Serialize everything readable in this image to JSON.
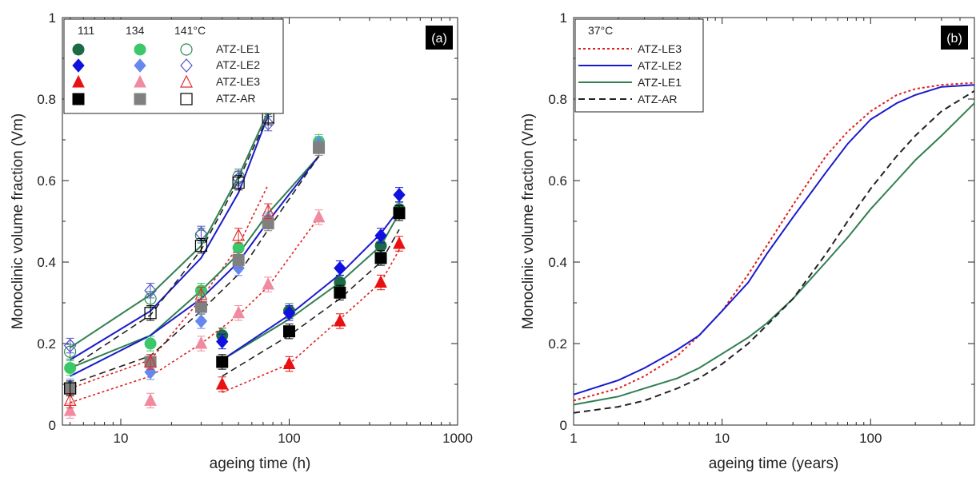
{
  "figure": {
    "panels": [
      {
        "panel_label": "(a)",
        "xlabel": "ageing time (h)",
        "ylabel": "Monoclinic volume fraction (Vm)",
        "legend_header": [
          "111",
          "134",
          "141°C"
        ],
        "legend_rows": [
          "ATZ-LE1",
          "ATZ-LE2",
          "ATZ-LE3",
          "ATZ-AR"
        ]
      },
      {
        "panel_label": "(b)",
        "xlabel": "ageing time (years)",
        "ylabel": "Monoclinic volume fraction (Vm)",
        "legend_title": "37°C",
        "legend_rows": [
          "ATZ-LE3",
          "ATZ-LE2",
          "ATZ-LE1",
          "ATZ-AR"
        ]
      }
    ]
  },
  "colors": {
    "LE1_dark": "#1d6b45",
    "LE1_light": "#3cc768",
    "LE1_open": "#2f8a5a",
    "LE2_dark": "#1010e0",
    "LE2_light": "#6688ee",
    "LE2_open": "#5555cc",
    "LE3_dark": "#e81010",
    "LE3_light": "#f08aa0",
    "LE3_open": "#e03030",
    "AR_dark": "#000000",
    "AR_light": "#808080",
    "AR_open": "#000000",
    "fit_LE1": "#2f7f50",
    "fit_LE2": "#1a1acc",
    "fit_LE3": "#e02020",
    "fit_AR": "#222222"
  },
  "chart_data": [
    {
      "type": "scatter",
      "xscale": "log",
      "xlim": [
        4.5,
        1000
      ],
      "ylim": [
        0,
        1
      ],
      "x_ticks": [
        "10",
        "100",
        "1000"
      ],
      "y_ticks": [
        "0",
        "0.2",
        "0.4",
        "0.6",
        "0.8",
        "1"
      ],
      "grid": false,
      "legend_placement": "top-left",
      "series": [
        {
          "material": "ATZ-LE1",
          "temperature": "111",
          "style": "dark",
          "marker": "circle",
          "x": [
            40,
            100,
            200,
            350,
            450
          ],
          "y": [
            0.22,
            0.28,
            0.35,
            0.44,
            0.53
          ]
        },
        {
          "material": "ATZ-LE2",
          "temperature": "111",
          "style": "dark",
          "marker": "diamond",
          "x": [
            40,
            100,
            200,
            350,
            450
          ],
          "y": [
            0.205,
            0.275,
            0.385,
            0.465,
            0.565
          ]
        },
        {
          "material": "ATZ-LE3",
          "temperature": "111",
          "style": "dark",
          "marker": "triangle",
          "x": [
            40,
            100,
            200,
            350,
            450
          ],
          "y": [
            0.1,
            0.15,
            0.255,
            0.35,
            0.445
          ]
        },
        {
          "material": "ATZ-AR",
          "temperature": "111",
          "style": "dark",
          "marker": "square",
          "x": [
            40,
            100,
            200,
            350,
            450
          ],
          "y": [
            0.155,
            0.23,
            0.325,
            0.41,
            0.52
          ]
        },
        {
          "material": "ATZ-LE1",
          "temperature": "134",
          "style": "light",
          "marker": "circle",
          "x": [
            5,
            15,
            30,
            50,
            75,
            150
          ],
          "y": [
            0.14,
            0.2,
            0.33,
            0.435,
            0.5,
            0.695
          ]
        },
        {
          "material": "ATZ-LE2",
          "temperature": "134",
          "style": "light",
          "marker": "diamond",
          "x": [
            5,
            15,
            30,
            50,
            75,
            150
          ],
          "y": [
            0.095,
            0.13,
            0.255,
            0.385,
            0.505,
            0.69
          ]
        },
        {
          "material": "ATZ-LE3",
          "temperature": "134",
          "style": "light",
          "marker": "triangle",
          "x": [
            5,
            15,
            30,
            50,
            75,
            150
          ],
          "y": [
            0.035,
            0.06,
            0.2,
            0.275,
            0.345,
            0.51
          ]
        },
        {
          "material": "ATZ-AR",
          "temperature": "134",
          "style": "light",
          "marker": "square",
          "x": [
            5,
            15,
            30,
            50,
            75,
            150
          ],
          "y": [
            0.09,
            0.155,
            0.29,
            0.405,
            0.495,
            0.68
          ]
        },
        {
          "material": "ATZ-LE1",
          "temperature": "141°C",
          "style": "open",
          "marker": "circle",
          "x": [
            5,
            15,
            30,
            50,
            75
          ],
          "y": [
            0.18,
            0.31,
            0.465,
            0.61,
            0.775
          ]
        },
        {
          "material": "ATZ-LE2",
          "temperature": "141°C",
          "style": "open",
          "marker": "diamond",
          "x": [
            5,
            15,
            30,
            50,
            75
          ],
          "y": [
            0.195,
            0.33,
            0.47,
            0.605,
            0.74
          ]
        },
        {
          "material": "ATZ-LE3",
          "temperature": "141°C",
          "style": "open",
          "marker": "triangle",
          "x": [
            5,
            15,
            30,
            50,
            75
          ],
          "y": [
            0.06,
            0.155,
            0.32,
            0.465,
            0.525
          ]
        },
        {
          "material": "ATZ-AR",
          "temperature": "141°C",
          "style": "open",
          "marker": "square",
          "x": [
            5,
            15,
            30,
            50,
            75
          ],
          "y": [
            0.09,
            0.275,
            0.44,
            0.595,
            0.755
          ]
        }
      ],
      "fit_lines": [
        {
          "material": "ATZ-LE1",
          "temperature": "141°C",
          "dash": "solid",
          "x": [
            5,
            15,
            30,
            50,
            75
          ],
          "y": [
            0.19,
            0.32,
            0.44,
            0.61,
            0.77
          ]
        },
        {
          "material": "ATZ-LE2",
          "temperature": "141°C",
          "dash": "solid",
          "x": [
            5,
            15,
            30,
            50,
            75
          ],
          "y": [
            0.16,
            0.28,
            0.41,
            0.57,
            0.76
          ]
        },
        {
          "material": "ATZ-AR",
          "temperature": "141°C",
          "dash": "dashed",
          "x": [
            5,
            15,
            30,
            50,
            75
          ],
          "y": [
            0.14,
            0.27,
            0.43,
            0.6,
            0.76
          ]
        },
        {
          "material": "ATZ-LE3",
          "temperature": "141°C",
          "dash": "dotted",
          "x": [
            5,
            15,
            30,
            50,
            75
          ],
          "y": [
            0.09,
            0.16,
            0.31,
            0.44,
            0.59
          ]
        },
        {
          "material": "ATZ-LE1",
          "temperature": "134",
          "dash": "solid",
          "x": [
            5,
            15,
            30,
            50,
            75,
            150
          ],
          "y": [
            0.14,
            0.22,
            0.33,
            0.42,
            0.52,
            0.66
          ]
        },
        {
          "material": "ATZ-LE2",
          "temperature": "134",
          "dash": "solid",
          "x": [
            5,
            15,
            30,
            50,
            75,
            150
          ],
          "y": [
            0.12,
            0.22,
            0.31,
            0.4,
            0.5,
            0.66
          ]
        },
        {
          "material": "ATZ-AR",
          "temperature": "134",
          "dash": "dashed",
          "x": [
            5,
            15,
            30,
            50,
            75,
            150
          ],
          "y": [
            0.1,
            0.17,
            0.28,
            0.37,
            0.48,
            0.66
          ]
        },
        {
          "material": "ATZ-LE3",
          "temperature": "134",
          "dash": "dotted",
          "x": [
            5,
            15,
            30,
            50,
            75,
            150
          ],
          "y": [
            0.055,
            0.12,
            0.2,
            0.27,
            0.34,
            0.51
          ]
        },
        {
          "material": "ATZ-LE1",
          "temperature": "111",
          "dash": "solid",
          "x": [
            40,
            100,
            200,
            350,
            450
          ],
          "y": [
            0.16,
            0.26,
            0.35,
            0.44,
            0.52
          ]
        },
        {
          "material": "ATZ-LE2",
          "temperature": "111",
          "dash": "solid",
          "x": [
            40,
            100,
            200,
            350,
            450
          ],
          "y": [
            0.16,
            0.27,
            0.37,
            0.47,
            0.53
          ]
        },
        {
          "material": "ATZ-AR",
          "temperature": "111",
          "dash": "dashed",
          "x": [
            40,
            100,
            200,
            350,
            450
          ],
          "y": [
            0.12,
            0.22,
            0.31,
            0.4,
            0.48
          ]
        },
        {
          "material": "ATZ-LE3",
          "temperature": "111",
          "dash": "dotted",
          "x": [
            40,
            100,
            200,
            350,
            450
          ],
          "y": [
            0.08,
            0.15,
            0.26,
            0.35,
            0.43
          ]
        }
      ]
    },
    {
      "type": "line",
      "xscale": "log",
      "xlim": [
        1,
        500
      ],
      "ylim": [
        0,
        1
      ],
      "x_ticks": [
        "1",
        "10",
        "100"
      ],
      "y_ticks": [
        "0",
        "0.2",
        "0.4",
        "0.6",
        "0.8",
        "1"
      ],
      "grid": false,
      "legend_placement": "top-left",
      "series": [
        {
          "name": "ATZ-LE3",
          "dash": "dotted",
          "x": [
            1,
            2,
            3,
            5,
            7,
            10,
            15,
            20,
            30,
            50,
            70,
            100,
            150,
            200,
            300,
            500
          ],
          "y": [
            0.06,
            0.09,
            0.12,
            0.17,
            0.22,
            0.28,
            0.37,
            0.44,
            0.54,
            0.66,
            0.72,
            0.77,
            0.81,
            0.825,
            0.835,
            0.84
          ]
        },
        {
          "name": "ATZ-LE2",
          "dash": "solid",
          "x": [
            1,
            2,
            3,
            5,
            7,
            10,
            15,
            20,
            30,
            50,
            70,
            100,
            150,
            200,
            300,
            500
          ],
          "y": [
            0.075,
            0.11,
            0.14,
            0.185,
            0.22,
            0.28,
            0.35,
            0.42,
            0.51,
            0.62,
            0.69,
            0.75,
            0.79,
            0.81,
            0.83,
            0.835
          ]
        },
        {
          "name": "ATZ-LE1",
          "dash": "solid",
          "x": [
            1,
            2,
            3,
            5,
            7,
            10,
            15,
            20,
            30,
            50,
            70,
            100,
            150,
            200,
            300,
            500
          ],
          "y": [
            0.05,
            0.07,
            0.09,
            0.115,
            0.14,
            0.175,
            0.215,
            0.25,
            0.31,
            0.4,
            0.46,
            0.53,
            0.6,
            0.65,
            0.71,
            0.79
          ]
        },
        {
          "name": "ATZ-AR",
          "dash": "dashed",
          "x": [
            1,
            2,
            3,
            5,
            7,
            10,
            15,
            20,
            30,
            50,
            70,
            100,
            150,
            200,
            300,
            500
          ],
          "y": [
            0.03,
            0.045,
            0.06,
            0.09,
            0.115,
            0.15,
            0.2,
            0.245,
            0.31,
            0.42,
            0.5,
            0.58,
            0.66,
            0.71,
            0.77,
            0.82
          ]
        }
      ]
    }
  ]
}
